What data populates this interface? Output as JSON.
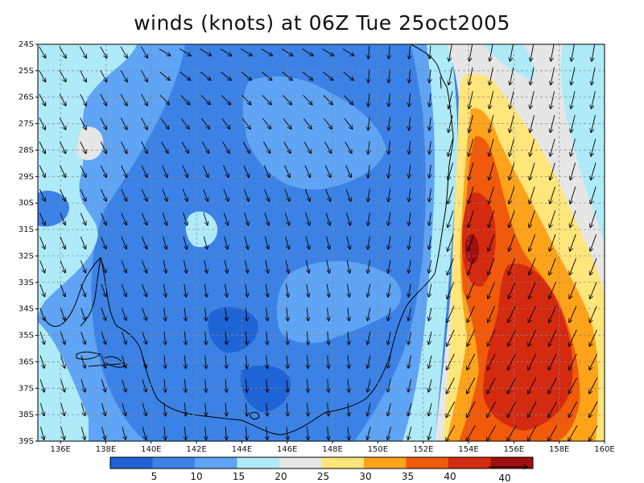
{
  "title": "winds (knots) at 06Z Tue 25oct2005",
  "map": {
    "lat_labels": [
      "24S",
      "25S",
      "26S",
      "27S",
      "28S",
      "29S",
      "30S",
      "31S",
      "32S",
      "33S",
      "34S",
      "35S",
      "36S",
      "37S",
      "38S",
      "39S"
    ],
    "lon_labels": [
      "136E",
      "138E",
      "140E",
      "142E",
      "144E",
      "146E",
      "148E",
      "150E",
      "152E",
      "154E",
      "156E",
      "158E",
      "160E"
    ],
    "lat_range": [
      -39,
      -24
    ],
    "lon_range": [
      135,
      160
    ],
    "grid": "dashed",
    "vector_field": "wind arrows",
    "coastline": true
  },
  "colorbar": {
    "levels": [
      "5",
      "10",
      "15",
      "20",
      "25",
      "30",
      "35",
      "40"
    ],
    "colors": [
      "#1e64d6",
      "#3c82e6",
      "#5fa4f5",
      "#aeeaf7",
      "#e6e6e6",
      "#ffe57a",
      "#ffa31a",
      "#f05a0a",
      "#d42a10",
      "#a10f0f"
    ],
    "reference_vector": "40"
  },
  "legend_colors": {
    "coast": "#000000",
    "arrow": "#000000"
  }
}
